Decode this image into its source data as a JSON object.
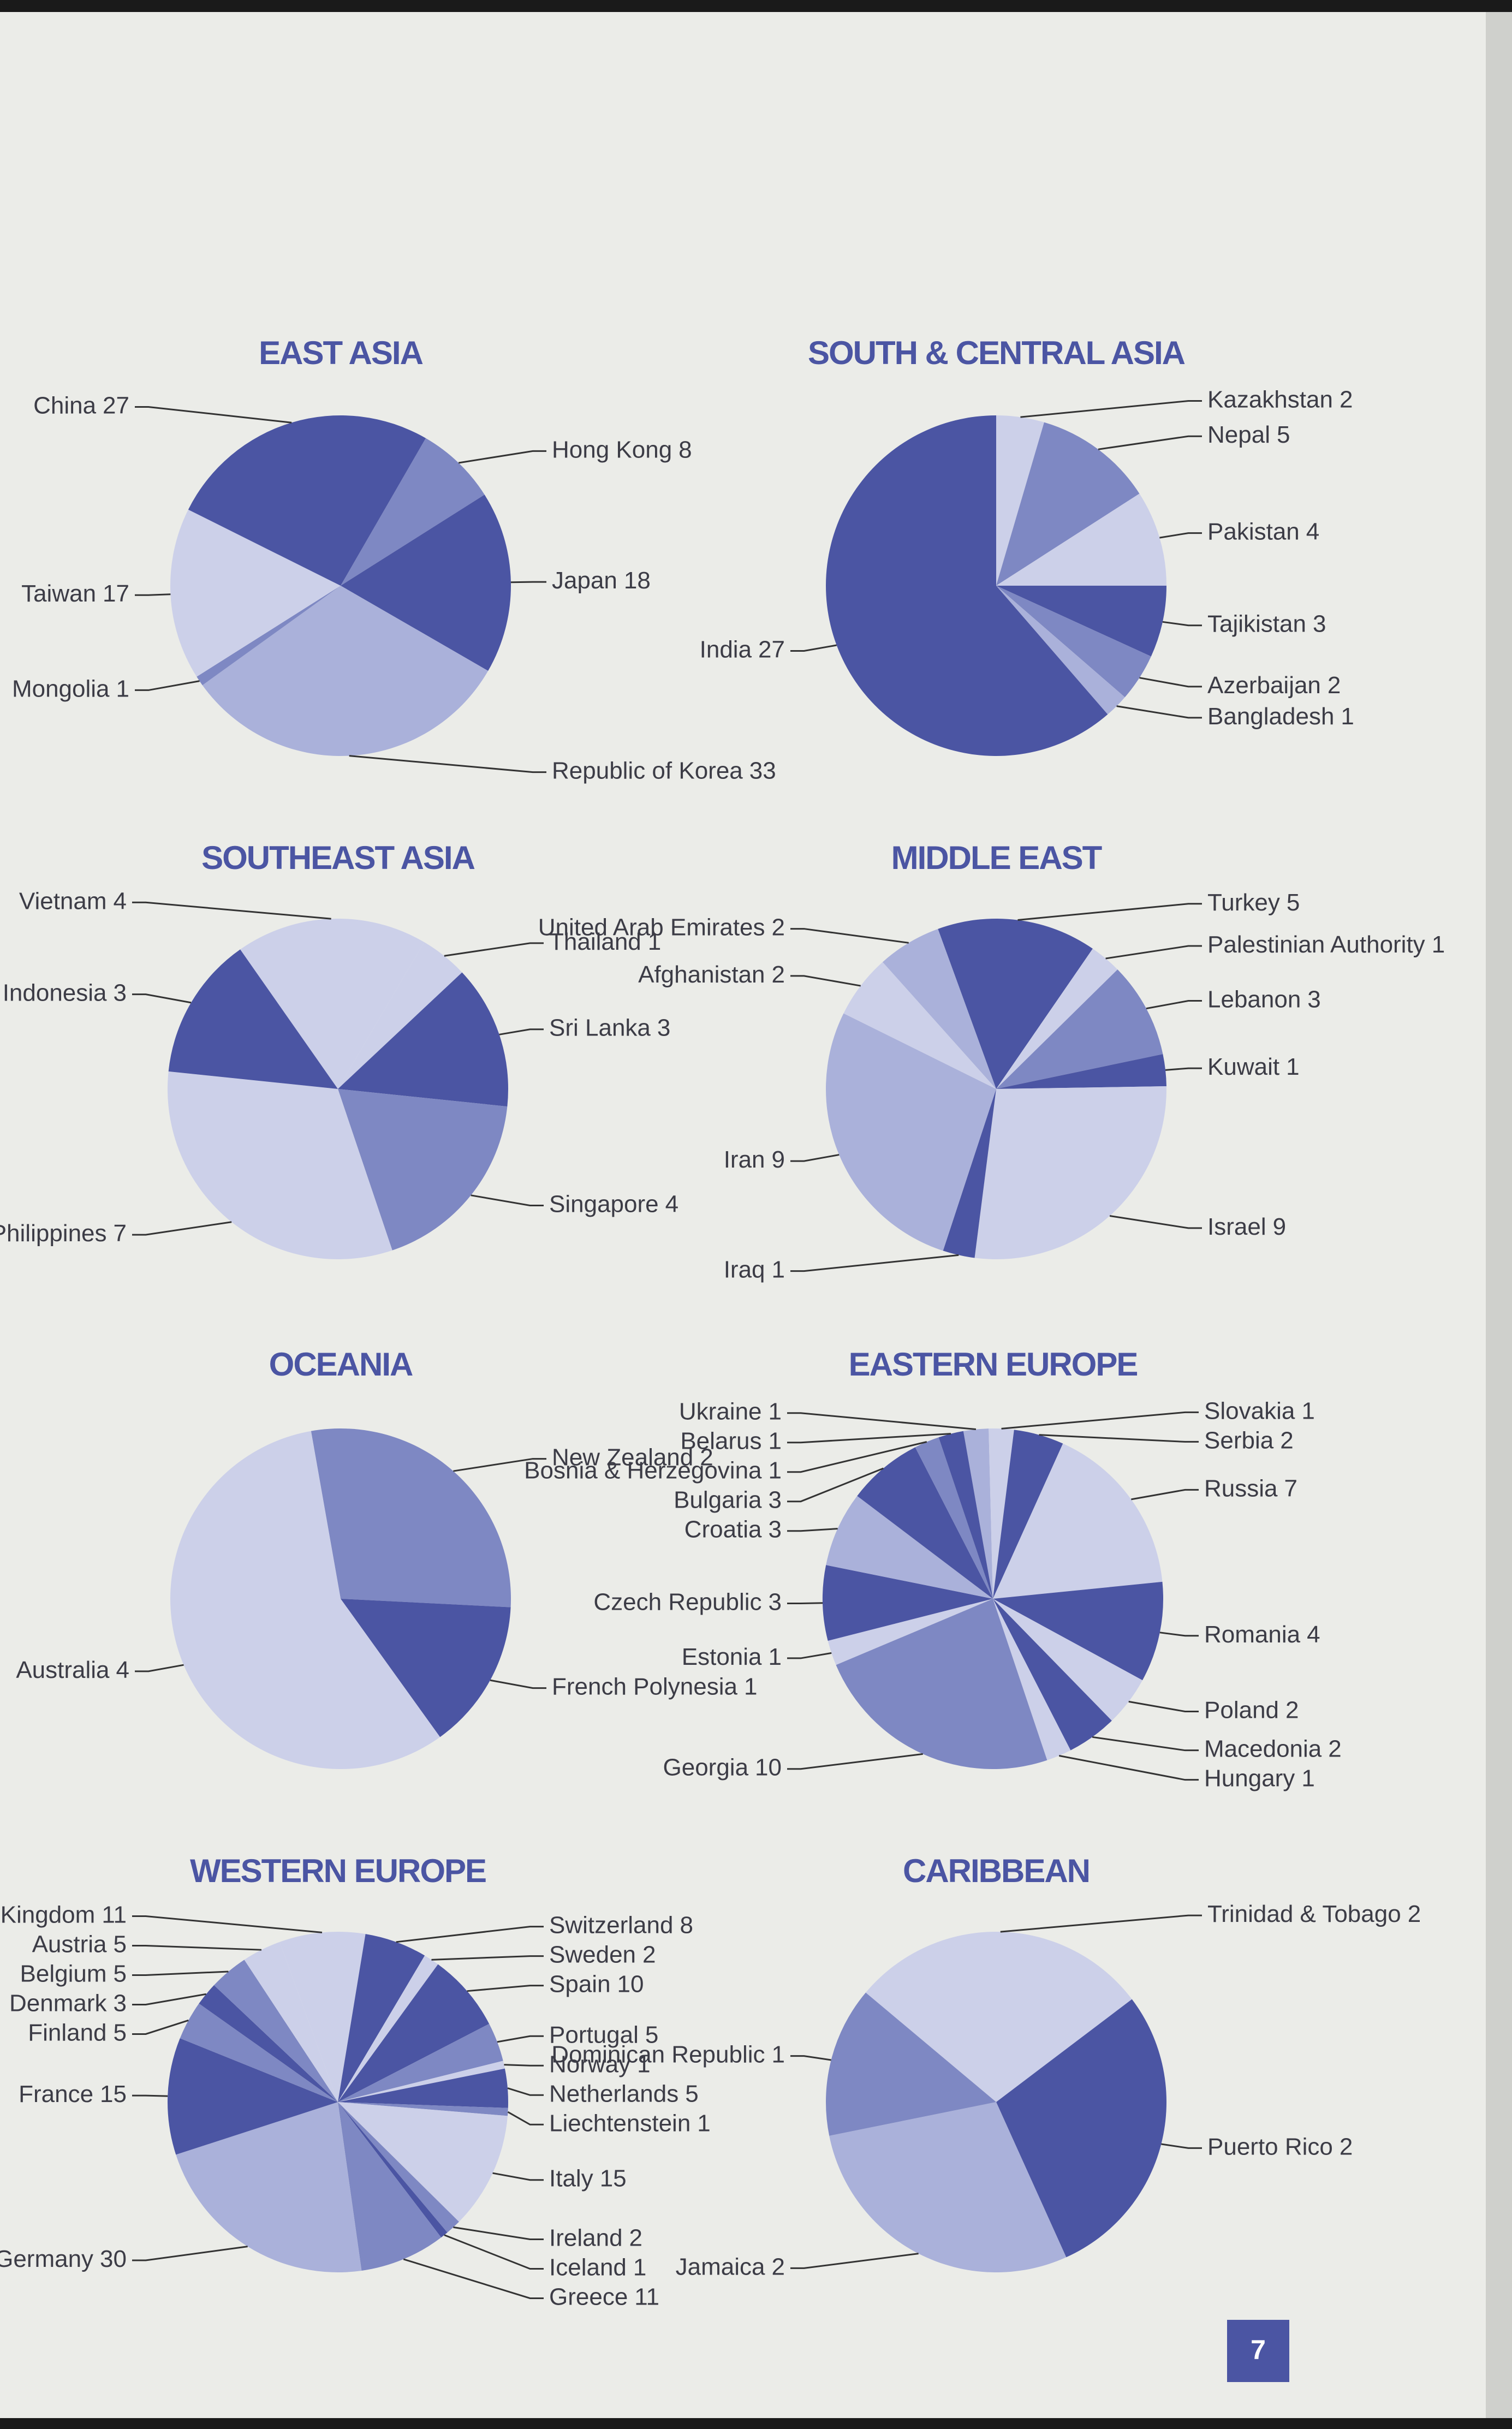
{
  "chart_data": [
    {
      "type": "pie",
      "title": "EAST ASIA",
      "categories": [
        "Hong Kong",
        "Japan",
        "Republic of Korea",
        "Mongolia",
        "Taiwan",
        "China"
      ],
      "values": [
        8,
        18,
        33,
        1,
        17,
        27
      ],
      "colors": [
        "#7e88c3",
        "#4b55a3",
        "#aab1da",
        "#7e88c3",
        "#ccd0e9",
        "#4b55a3"
      ]
    },
    {
      "type": "pie",
      "title": "SOUTH & CENTRAL ASIA",
      "categories": [
        "Kazakhstan",
        "Nepal",
        "Pakistan",
        "Tajikistan",
        "Azerbaijan",
        "Bangladesh",
        "India"
      ],
      "values": [
        2,
        5,
        4,
        3,
        2,
        1,
        27
      ],
      "colors": [
        "#ccd0e9",
        "#7e88c3",
        "#ccd0e9",
        "#4b55a3",
        "#7e88c3",
        "#aab1da",
        "#4b55a3"
      ]
    },
    {
      "type": "pie",
      "title": "SOUTHEAST ASIA",
      "categories": [
        "Vietnam",
        "Thailand",
        "Sri Lanka",
        "Singapore",
        "Philippines",
        "Indonesia"
      ],
      "values": [
        4,
        1,
        3,
        4,
        7,
        3
      ],
      "colors": [
        "#ccd0e9",
        "#ccd0e9",
        "#4b55a3",
        "#7e88c3",
        "#ccd0e9",
        "#4b55a3"
      ]
    },
    {
      "type": "pie",
      "title": "MIDDLE EAST",
      "categories": [
        "Turkey",
        "Palestinian Authority",
        "Lebanon",
        "Kuwait",
        "Israel",
        "Iraq",
        "Iran",
        "Afghanistan",
        "United Arab Emirates"
      ],
      "values": [
        5,
        1,
        3,
        1,
        9,
        1,
        9,
        2,
        2
      ],
      "colors": [
        "#4b55a3",
        "#ccd0e9",
        "#7e88c3",
        "#4b55a3",
        "#ccd0e9",
        "#4b55a3",
        "#aab1da",
        "#ccd0e9",
        "#aab1da"
      ]
    },
    {
      "type": "pie",
      "title": "OCEANIA",
      "categories": [
        "New Zealand",
        "French Polynesia",
        "Australia"
      ],
      "values": [
        2,
        1,
        4
      ],
      "colors": [
        "#7e88c3",
        "#4b55a3",
        "#ccd0e9"
      ]
    },
    {
      "type": "pie",
      "title": "EASTERN EUROPE",
      "categories": [
        "Ukraine",
        "Slovakia",
        "Serbia",
        "Russia",
        "Romania",
        "Poland",
        "Macedonia",
        "Hungary",
        "Georgia",
        "Estonia",
        "Czech Republic",
        "Croatia",
        "Bulgaria",
        "Bosnia & Herzegovina",
        "Belarus"
      ],
      "values": [
        1,
        1,
        2,
        7,
        4,
        2,
        2,
        1,
        10,
        1,
        3,
        3,
        3,
        1,
        1
      ],
      "colors": [
        "#aab1da",
        "#ccd0e9",
        "#4b55a3",
        "#ccd0e9",
        "#4b55a3",
        "#ccd0e9",
        "#4b55a3",
        "#ccd0e9",
        "#7e88c3",
        "#ccd0e9",
        "#4b55a3",
        "#aab1da",
        "#4b55a3",
        "#7e88c3",
        "#4b55a3"
      ]
    },
    {
      "type": "pie",
      "title": "WESTERN EUROPE",
      "categories": [
        "United Kingdom",
        "Switzerland",
        "Sweden",
        "Spain",
        "Portugal",
        "Norway",
        "Netherlands",
        "Liechtenstein",
        "Italy",
        "Ireland",
        "Iceland",
        "Greece",
        "Germany",
        "France",
        "Finland",
        "Denmark",
        "Belgium",
        "Austria"
      ],
      "values": [
        11,
        8,
        2,
        10,
        5,
        1,
        5,
        1,
        15,
        2,
        1,
        11,
        30,
        15,
        5,
        3,
        5,
        5
      ],
      "colors": [
        "#ccd0e9",
        "#4b55a3",
        "#ccd0e9",
        "#4b55a3",
        "#7e88c3",
        "#ccd0e9",
        "#4b55a3",
        "#7e88c3",
        "#ccd0e9",
        "#7e88c3",
        "#4b55a3",
        "#7e88c3",
        "#aab1da",
        "#4b55a3",
        "#7e88c3",
        "#4b55a3",
        "#7e88c3",
        "#ccd0e9"
      ]
    },
    {
      "type": "pie",
      "title": "CARIBBEAN",
      "categories": [
        "Trinidad & Tobago",
        "Puerto Rico",
        "Jamaica",
        "Dominican Republic"
      ],
      "values": [
        2,
        2,
        2,
        1
      ],
      "colors": [
        "#ccd0e9",
        "#4b55a3",
        "#aab1da",
        "#7e88c3"
      ]
    }
  ],
  "page_number": 7
}
